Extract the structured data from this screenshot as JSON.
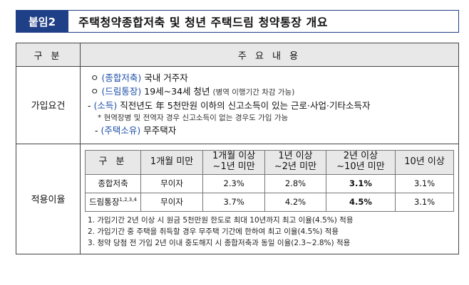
{
  "header": {
    "badge": "붙임2",
    "title": "주택청약종합저축 및 청년 주택드림 청약통장 개요"
  },
  "table": {
    "col_header_1": "구  분",
    "col_header_2": "주 요 내 용",
    "rows": {
      "requirements": {
        "label": "가입요건",
        "items": [
          {
            "bullet": "ㅇ",
            "tag": "(종합저축)",
            "text": "국내 거주자",
            "sub": ""
          },
          {
            "bullet": "ㅇ",
            "tag": "(드림통장)",
            "text": "19세~34세 청년",
            "sub": "(병역 이행기간 차감 가능)"
          },
          {
            "bullet": "-",
            "tag": "(소득)",
            "text": "직전년도 年 5천만원 이하의 신고소득이 있는 근로·사업·기타소득자",
            "sub": ""
          },
          {
            "bullet": "*",
            "tag": "",
            "text": "현역장병 및 전역자 경우 신고소득이 없는 경우도 가입 가능",
            "sub": ""
          },
          {
            "bullet": "-",
            "tag": "(주택소유)",
            "text": "무주택자",
            "sub": ""
          }
        ]
      },
      "rates": {
        "label": "적용이율",
        "headers": [
          "구  분",
          "1개월 미만",
          "1개월 이상\n~1년 미만",
          "1년 이상\n~2년 미만",
          "2년 이상\n~10년 미만",
          "10년 이상"
        ],
        "data": [
          {
            "name": "종합저축",
            "sup": "",
            "values": [
              "무이자",
              "2.3%",
              "2.8%",
              "3.1%",
              "3.1%"
            ]
          },
          {
            "name": "드림통장",
            "sup": "1,2,3,4",
            "values": [
              "무이자",
              "3.7%",
              "4.2%",
              "4.5%",
              "3.1%"
            ]
          }
        ],
        "footnotes": [
          "1. 가입기간 2년 이상 시 원금 5천만원 한도로 최대 10년까지 최고 이율(4.5%) 적용",
          "2. 가입기간 중 주택을 취득할 경우 무주택 기간에 한하여 최고 이율(4.5%) 적용",
          "3. 청약 당첨 전 가입 2년 이내 중도해지 시 종합저축과 동일 이율(2.3~2.8%) 적용"
        ]
      }
    }
  },
  "colors": {
    "badge_bg": "#1f3f86",
    "tag_blue": "#1d4fa8",
    "header_gray": "#e8e8e8"
  }
}
